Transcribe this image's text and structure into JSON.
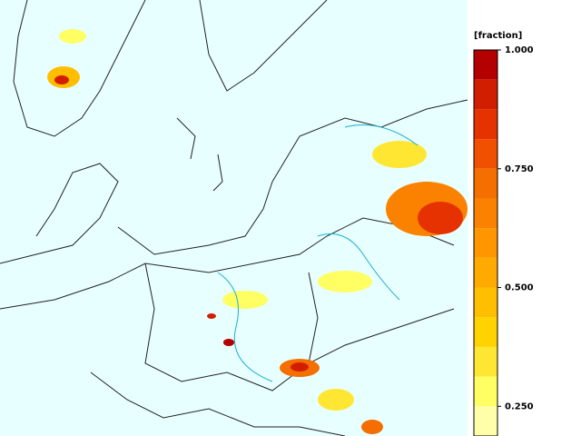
{
  "colorbar": {
    "title": "[fraction]",
    "lim": [
      0.1875,
      1
    ],
    "levels": [
      1,
      0.9375,
      0.875,
      0.8125,
      0.75,
      0.6875,
      0.625,
      0.5625,
      0.5,
      0.4375,
      0.375,
      0.3125,
      0.25,
      0.1875
    ],
    "colors": [
      "#b40000",
      "#d21e00",
      "#e63200",
      "#f05000",
      "#f56e00",
      "#fa8200",
      "#ff9600",
      "#ffaa00",
      "#ffbe00",
      "#ffd200",
      "#ffe632",
      "#ffff64",
      "#ffffaa"
    ],
    "ticks": [
      {
        "value": 1,
        "label": "1.000"
      },
      {
        "value": 0.75,
        "label": "0.750"
      },
      {
        "value": 0.5,
        "label": "0.500"
      },
      {
        "value": 0.25,
        "label": "0.250"
      }
    ]
  }
}
